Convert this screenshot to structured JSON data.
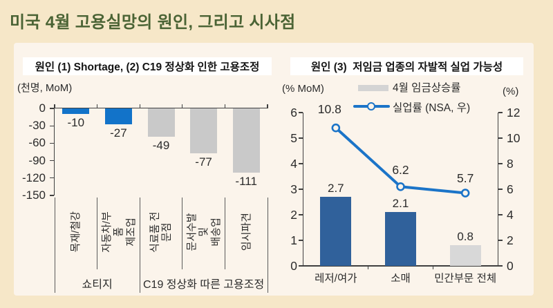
{
  "page": {
    "title": "미국 4월 고용실망의 원인, 그리고 시사점"
  },
  "colors": {
    "background": "#F6E7C8",
    "card": "#FBF4EB",
    "title_green": "#4A6334",
    "axis": "#3f3f3f",
    "separator": "#5a5a5a",
    "accent_blue": "#1273C9",
    "steel_blue": "#30619B",
    "gray_bar": "#C9C9C9",
    "light_gray_bar": "#D8D8D8",
    "line_blue": "#1B74C8",
    "legend_gray": "#D4D4D4"
  },
  "chart_data": [
    {
      "type": "bar",
      "title": "원인 (1) Shortage, (2) C19 정상화 인한 고용조정",
      "unit_label": "(천명, MoM)",
      "categories": [
        "목재/철강",
        "자동차/부품\n제조업",
        "식료품 전문점",
        "문서수발 및\n배송업",
        "임시파견"
      ],
      "values": [
        -10,
        -27,
        -49,
        -77,
        -111
      ],
      "bar_colors": [
        "#1273C9",
        "#1273C9",
        "#C9C9C9",
        "#C9C9C9",
        "#C9C9C9"
      ],
      "yticks": [
        0,
        -30,
        -60,
        -90,
        -120,
        -150
      ],
      "ylim": [
        -150,
        0
      ],
      "grid": false,
      "groups": [
        {
          "label": "쇼티지",
          "span": [
            0,
            2
          ]
        },
        {
          "label": "C19 정상화 따른 고용조정",
          "span": [
            2,
            5
          ]
        }
      ]
    },
    {
      "type": "bar+line",
      "title": "원인 (3)  저임금 업종의 자발적 실업 가능성",
      "left_unit": "(% MoM)",
      "right_unit": "(%)",
      "categories": [
        "레저/여가",
        "소매",
        "민간부문 전체"
      ],
      "series": [
        {
          "name": "4월 임금상승률",
          "type": "bar",
          "axis": "left",
          "values": [
            2.7,
            2.1,
            0.8
          ],
          "colors": [
            "#30619B",
            "#30619B",
            "#D8D8D8"
          ]
        },
        {
          "name": "실업률 (NSA, 우)",
          "type": "line",
          "axis": "right",
          "values": [
            10.8,
            6.2,
            5.7
          ],
          "color": "#1B74C8"
        }
      ],
      "left_ticks": [
        0,
        1,
        2,
        3,
        4,
        5,
        6
      ],
      "right_ticks": [
        0,
        2,
        4,
        6,
        8,
        10,
        12
      ],
      "left_lim": [
        0,
        6
      ],
      "right_lim": [
        0,
        12
      ],
      "grid": false,
      "legend_position": "top"
    }
  ]
}
